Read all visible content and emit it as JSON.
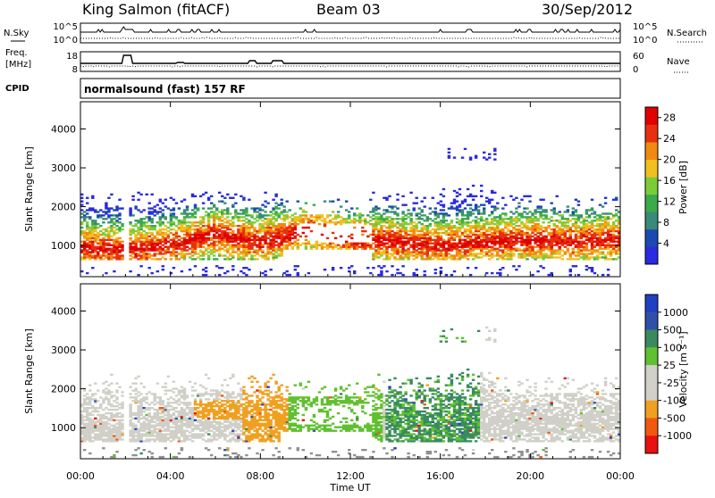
{
  "header": {
    "station": "King Salmon (fitACF)",
    "beam": "Beam 03",
    "date": "30/Sep/2012"
  },
  "top_panels": {
    "nsky_label": "N.Sky",
    "nsearch_label": "N.Search",
    "noise_ticks": [
      "10^5",
      "10^0"
    ],
    "noise_right_ticks": [
      "10^5",
      "10^0"
    ],
    "freq_label_1": "Freq.",
    "freq_label_2": "[MHz]",
    "freq_ticks": [
      "18",
      "8"
    ],
    "nave_label": "Nave",
    "nave_ticks": [
      "60",
      "0"
    ],
    "cpid_label": "CPID",
    "cpid_text": "normalsound (fast) 157 RF"
  },
  "colors": {
    "power": [
      "#2a2ae0",
      "#1a4ab0",
      "#3a8a7a",
      "#3aaa4a",
      "#7ccc3a",
      "#f0c020",
      "#f08a10",
      "#e83010",
      "#e00000"
    ],
    "velocity": [
      "#e81010",
      "#f05a10",
      "#f0a020",
      "#d0d0c8",
      "#d0d0c8",
      "#60c030",
      "#3a8a60",
      "#3050a8",
      "#2040c0"
    ],
    "ground": "#909090"
  },
  "chart_data": [
    {
      "type": "heatmap",
      "name": "power-panel",
      "ylabel": "Slant Range [km]",
      "y_ticks": [
        1000,
        2000,
        3000,
        4000
      ],
      "ylim": [
        200,
        4700
      ],
      "x_ticks": [
        "00:00",
        "04:00",
        "08:00",
        "12:00",
        "16:00",
        "20:00",
        "00:00"
      ],
      "xlim_hours": [
        0,
        24
      ],
      "colorbar": {
        "label": "Power [dB]",
        "ticks": [
          4,
          8,
          12,
          16,
          20,
          24,
          28
        ],
        "range": [
          0,
          30
        ]
      },
      "echo_band_main_km": [
        {
          "t": 0,
          "center": 950
        },
        {
          "t": 2,
          "center": 900
        },
        {
          "t": 4,
          "center": 1000
        },
        {
          "t": 6,
          "center": 1300
        },
        {
          "t": 8,
          "center": 1100
        },
        {
          "t": 10,
          "center": 1400
        },
        {
          "t": 12,
          "center": 1200
        },
        {
          "t": 14,
          "center": 1100
        },
        {
          "t": 16,
          "center": 1000
        },
        {
          "t": 18,
          "center": 1100
        },
        {
          "t": 20,
          "center": 1150
        },
        {
          "t": 22,
          "center": 1100
        },
        {
          "t": 24,
          "center": 1200
        }
      ]
    },
    {
      "type": "heatmap",
      "name": "velocity-panel",
      "ylabel": "Slant Range [km]",
      "y_ticks": [
        1000,
        2000,
        3000,
        4000
      ],
      "ylim": [
        200,
        4700
      ],
      "x_ticks": [
        "00:00",
        "04:00",
        "08:00",
        "12:00",
        "16:00",
        "20:00",
        "00:00"
      ],
      "xlabel": "Time UT",
      "colorbar": {
        "label": "Velocity [m s⁻¹]",
        "ticks": [
          "1000",
          "500",
          "100",
          "25",
          "-25",
          "-100",
          "-500",
          "-1000"
        ]
      }
    }
  ]
}
